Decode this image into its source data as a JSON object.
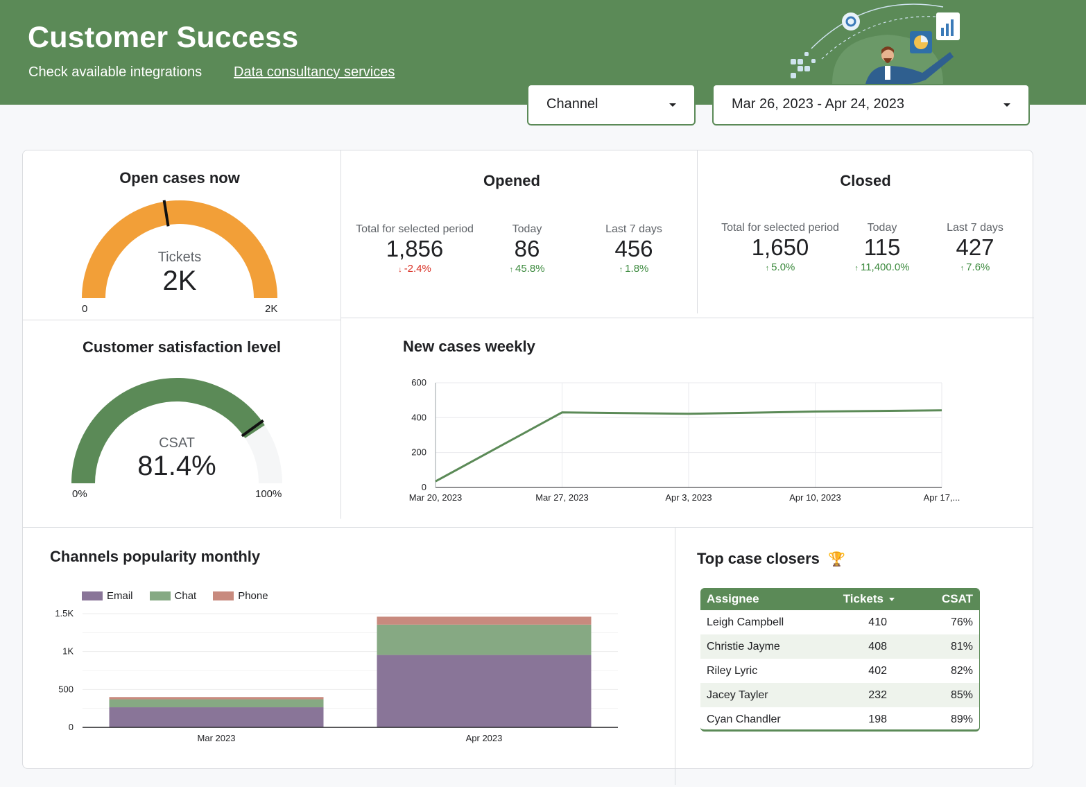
{
  "header": {
    "title": "Customer Success",
    "link_integrations": "Check available integrations",
    "link_consultancy": "Data consultancy services"
  },
  "filters": {
    "channel": "Channel",
    "date_range": "Mar 26, 2023 - Apr 24, 2023"
  },
  "open_cases": {
    "title": "Open cases now",
    "center_label": "Tickets",
    "center_value": "2K",
    "min_label": "0",
    "max_label": "2K",
    "fill_fraction": 1.0,
    "target_fraction": 0.45
  },
  "opened": {
    "title": "Opened",
    "metrics": [
      {
        "label": "Total for selected period",
        "value": "1,856",
        "delta": "-2.4%",
        "dir": "down"
      },
      {
        "label": "Today",
        "value": "86",
        "delta": "45.8%",
        "dir": "up"
      },
      {
        "label": "Last 7 days",
        "value": "456",
        "delta": "1.8%",
        "dir": "up"
      }
    ]
  },
  "closed": {
    "title": "Closed",
    "metrics": [
      {
        "label": "Total for selected period",
        "value": "1,650",
        "delta": "5.0%",
        "dir": "up"
      },
      {
        "label": "Today",
        "value": "115",
        "delta": "11,400.0%",
        "dir": "up"
      },
      {
        "label": "Last 7 days",
        "value": "427",
        "delta": "7.6%",
        "dir": "up"
      }
    ]
  },
  "csat": {
    "title": "Customer satisfaction level",
    "center_label": "CSAT",
    "center_value": "81.4%",
    "min_label": "0%",
    "max_label": "100%",
    "fill_fraction": 0.814,
    "target_fraction": 0.8
  },
  "channels": {
    "title": "Channels popularity monthly"
  },
  "closers": {
    "title": "Top case closers",
    "trophy": "🏆",
    "columns": [
      "Assignee",
      "Tickets",
      "CSAT"
    ],
    "rows": [
      [
        "Leigh Campbell",
        "410",
        "76%"
      ],
      [
        "Christie Jayme",
        "408",
        "81%"
      ],
      [
        "Riley Lyric",
        "402",
        "82%"
      ],
      [
        "Jacey Tayler",
        "232",
        "85%"
      ],
      [
        "Cyan Chandler",
        "198",
        "89%"
      ]
    ]
  },
  "colors": {
    "brand": "#5b8a57",
    "gauge_orange": "#f29f38",
    "email": "#897598",
    "chat": "#86a983",
    "phone": "#c88a7e"
  },
  "chart_data": [
    {
      "type": "line",
      "title": "New cases weekly",
      "x": [
        "Mar 20, 2023",
        "Mar 27, 2023",
        "Apr 3, 2023",
        "Apr 10, 2023",
        "Apr 17,..."
      ],
      "values": [
        35,
        430,
        422,
        435,
        442
      ],
      "ylim": [
        0,
        600
      ],
      "yticks": [
        "0",
        "200",
        "400",
        "600"
      ],
      "xlabel": "",
      "ylabel": ""
    },
    {
      "type": "bar",
      "stacked": true,
      "title": "Channels popularity monthly",
      "categories": [
        "Mar 2023",
        "Apr 2023"
      ],
      "series": [
        {
          "name": "Email",
          "values": [
            265,
            955
          ]
        },
        {
          "name": "Chat",
          "values": [
            105,
            400
          ]
        },
        {
          "name": "Phone",
          "values": [
            30,
            105
          ]
        }
      ],
      "ylim": [
        0,
        1500
      ],
      "yticks": [
        "0",
        "500",
        "1K",
        "1.5K"
      ],
      "legend": "top-left"
    }
  ]
}
